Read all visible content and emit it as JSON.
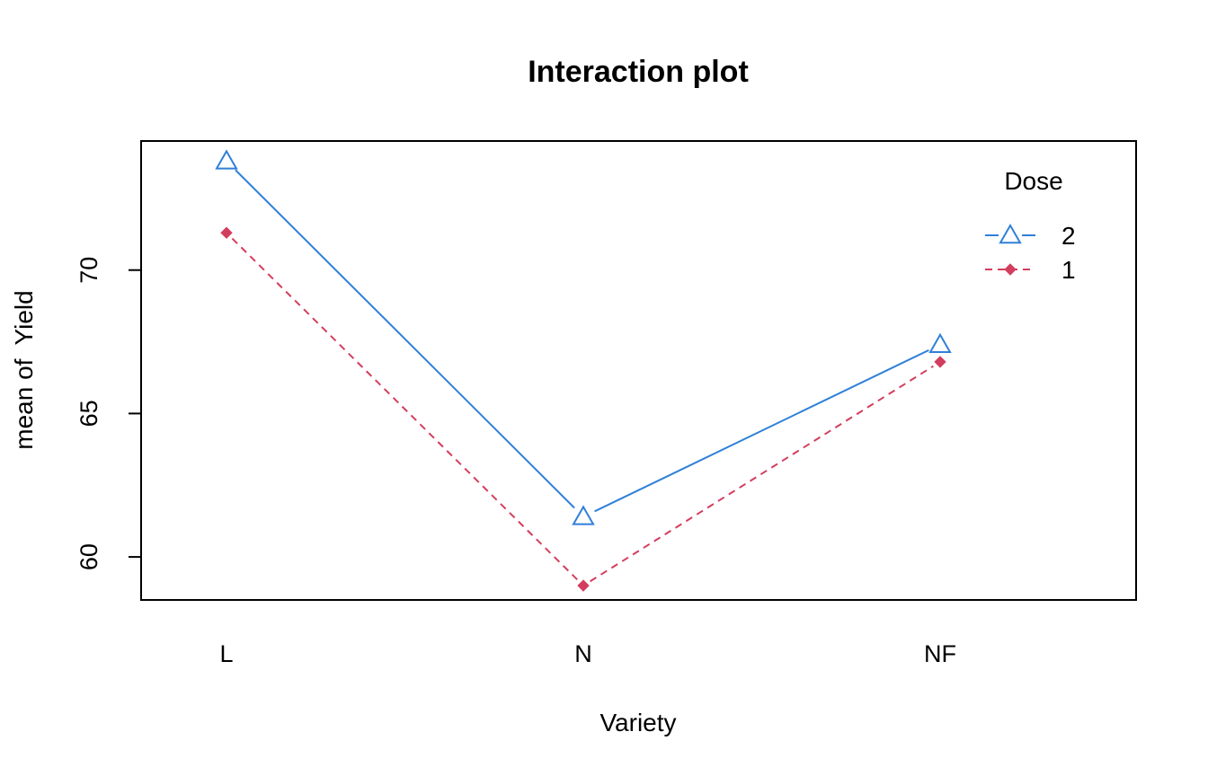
{
  "chart_data": {
    "type": "line",
    "title": "Interaction plot",
    "xlabel": "Variety",
    "ylabel": "mean of  Yield",
    "categories": [
      "L",
      "N",
      "NF"
    ],
    "ylim": [
      58.5,
      74.5
    ],
    "yticks": [
      60,
      65,
      70
    ],
    "grid": false,
    "legend": {
      "title": "Dose",
      "placement": "top-right"
    },
    "series": [
      {
        "name": "2",
        "values": [
          73.8,
          61.4,
          67.4
        ],
        "color": "#2f80d8",
        "line_style": "solid",
        "marker": "open-triangle"
      },
      {
        "name": "1",
        "values": [
          71.3,
          59.0,
          66.8
        ],
        "color": "#d33e5e",
        "line_style": "dashed",
        "marker": "filled-diamond"
      }
    ]
  }
}
